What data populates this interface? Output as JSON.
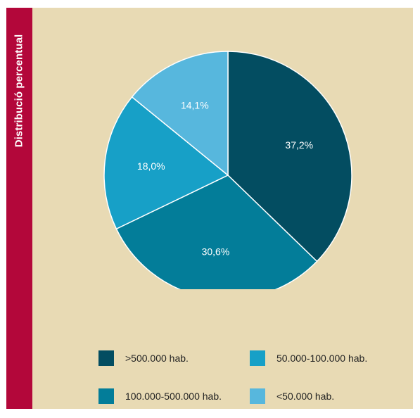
{
  "sidebar": {
    "title": "Distribució percentual"
  },
  "chart_data": {
    "type": "pie",
    "categories": [
      ">500.000 hab.",
      "100.000-500.000 hab.",
      "50.000-100.000 hab.",
      "<50.000 hab."
    ],
    "values": [
      37.2,
      30.6,
      18.0,
      14.1
    ],
    "labels": [
      "37,2%",
      "30,6%",
      "18,0%",
      "14,1%"
    ],
    "colors": [
      "#034d61",
      "#037d99",
      "#17a0c7",
      "#57b7dd"
    ],
    "legend": "bottom",
    "start": "12 o'clock",
    "direction": "clockwise"
  },
  "legend": [
    {
      "label": ">500.000 hab.",
      "color": "#034d61"
    },
    {
      "label": "50.000-100.000 hab.",
      "color": "#17a0c7"
    },
    {
      "label": "100.000-500.000 hab.",
      "color": "#037d99"
    },
    {
      "label": "<50.000 hab.",
      "color": "#57b7dd"
    }
  ]
}
